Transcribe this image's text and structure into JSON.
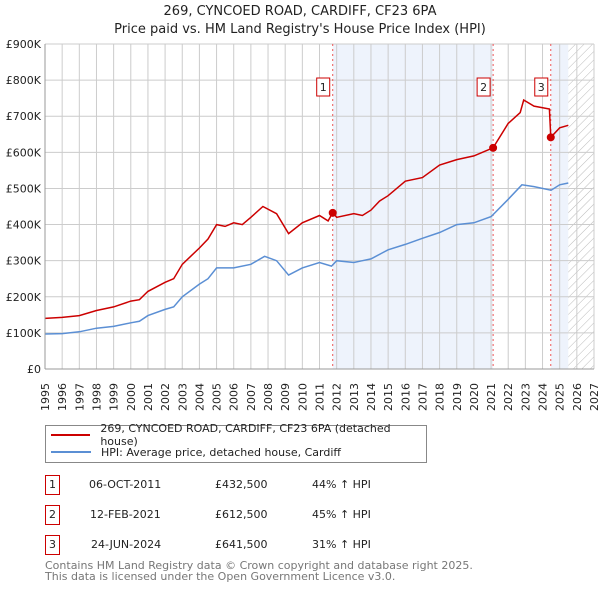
{
  "colors": {
    "property": "#cc0000",
    "hpi": "#5b8fd4",
    "shade": "#eef3fc"
  },
  "chart_data": {
    "type": "line",
    "title": "269, CYNCOED ROAD, CARDIFF, CF23 6PA",
    "subtitle": "Price paid vs. HM Land Registry's House Price Index (HPI)",
    "xlim": [
      1995,
      2027
    ],
    "ylim": [
      0,
      900000
    ],
    "yticks": [
      {
        "v": 0,
        "label": "£0"
      },
      {
        "v": 100000,
        "label": "£100K"
      },
      {
        "v": 200000,
        "label": "£200K"
      },
      {
        "v": 300000,
        "label": "£300K"
      },
      {
        "v": 400000,
        "label": "£400K"
      },
      {
        "v": 500000,
        "label": "£500K"
      },
      {
        "v": 600000,
        "label": "£600K"
      },
      {
        "v": 700000,
        "label": "£700K"
      },
      {
        "v": 800000,
        "label": "£800K"
      },
      {
        "v": 900000,
        "label": "£900K"
      }
    ],
    "xticks": [
      "1995",
      "1996",
      "1997",
      "1998",
      "1999",
      "2000",
      "2001",
      "2002",
      "2003",
      "2004",
      "2005",
      "2006",
      "2007",
      "2008",
      "2009",
      "2010",
      "2011",
      "2012",
      "2013",
      "2014",
      "2015",
      "2016",
      "2017",
      "2018",
      "2019",
      "2020",
      "2021",
      "2022",
      "2023",
      "2024",
      "2025",
      "2026",
      "2027"
    ],
    "series": [
      {
        "name": "269, CYNCOED ROAD, CARDIFF, CF23 6PA (detached house)",
        "color": "#cc0000",
        "x": [
          1995,
          1996,
          1997,
          1998,
          1999,
          2000,
          2000.5,
          2001,
          2002,
          2002.5,
          2003,
          2004,
          2004.5,
          2005,
          2005.5,
          2006,
          2006.5,
          2007,
          2007.7,
          2008.5,
          2009.2,
          2010,
          2011,
          2011.5,
          2011.77,
          2012,
          2013,
          2013.5,
          2014,
          2014.5,
          2015,
          2016,
          2017,
          2018,
          2019,
          2020,
          2021.12,
          2022,
          2022.7,
          2022.9,
          2023.5,
          2024.4,
          2024.48,
          2025,
          2025.5
        ],
        "y": [
          140000,
          143000,
          148000,
          162000,
          172000,
          188000,
          192000,
          215000,
          240000,
          250000,
          290000,
          335000,
          360000,
          400000,
          395000,
          405000,
          400000,
          420000,
          450000,
          430000,
          375000,
          405000,
          425000,
          410000,
          432500,
          420000,
          430000,
          425000,
          440000,
          465000,
          480000,
          520000,
          530000,
          565000,
          580000,
          590000,
          612500,
          680000,
          710000,
          745000,
          728000,
          720000,
          641500,
          668000,
          675000
        ]
      },
      {
        "name": "HPI: Average price, detached house, Cardiff",
        "color": "#5b8fd4",
        "x": [
          1995,
          1996,
          1997,
          1998,
          1999,
          2000,
          2000.5,
          2001,
          2002,
          2002.5,
          2003,
          2004,
          2004.5,
          2005,
          2006,
          2007,
          2007.8,
          2008.5,
          2009.2,
          2010,
          2011,
          2011.7,
          2012,
          2013,
          2013.5,
          2014,
          2015,
          2016,
          2017,
          2018,
          2019,
          2020,
          2021,
          2022,
          2022.8,
          2023.5,
          2024.5,
          2025,
          2025.5
        ],
        "y": [
          97000,
          98000,
          103000,
          113000,
          118000,
          128000,
          132000,
          148000,
          165000,
          172000,
          200000,
          235000,
          250000,
          280000,
          280000,
          290000,
          312000,
          300000,
          260000,
          280000,
          295000,
          285000,
          300000,
          295000,
          300000,
          305000,
          330000,
          345000,
          362000,
          378000,
          400000,
          405000,
          422000,
          470000,
          510000,
          505000,
          495000,
          510000,
          515000
        ]
      }
    ],
    "sales": [
      {
        "label": "1",
        "x": 2011.77,
        "y": 432500
      },
      {
        "label": "2",
        "x": 2021.12,
        "y": 612500
      },
      {
        "label": "3",
        "x": 2024.48,
        "y": 641500
      }
    ],
    "shaded": [
      [
        2011.77,
        2021.12
      ],
      [
        2024.48,
        2025.5
      ]
    ],
    "forecast_hatch_from": 2025.5
  },
  "legend": {
    "property": "269, CYNCOED ROAD, CARDIFF, CF23 6PA (detached house)",
    "hpi": "HPI: Average price, detached house, Cardiff"
  },
  "transactions": [
    {
      "num": "1",
      "date": "06-OCT-2011",
      "price": "£432,500",
      "hpi": "44% ↑ HPI"
    },
    {
      "num": "2",
      "date": "12-FEB-2021",
      "price": "£612,500",
      "hpi": "45% ↑ HPI"
    },
    {
      "num": "3",
      "date": "24-JUN-2024",
      "price": "£641,500",
      "hpi": "31% ↑ HPI"
    }
  ],
  "footer": {
    "line1": "Contains HM Land Registry data © Crown copyright and database right 2025.",
    "line2": "This data is licensed under the Open Government Licence v3.0."
  }
}
